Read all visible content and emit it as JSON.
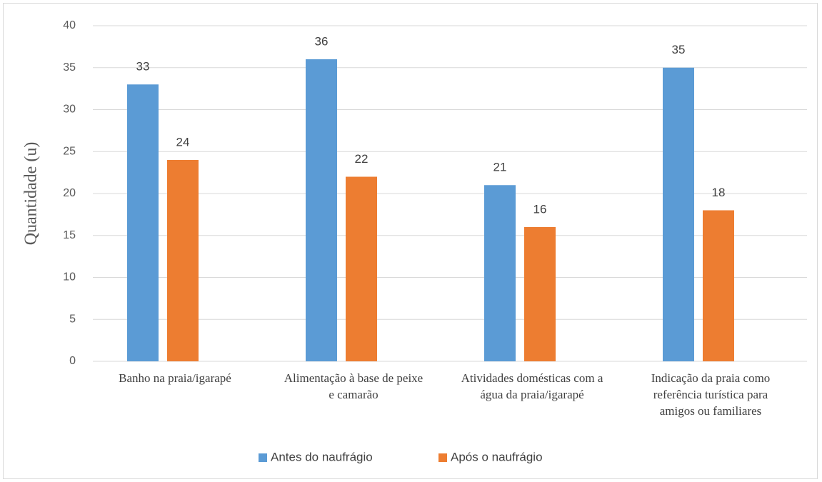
{
  "chart_data": {
    "type": "bar",
    "y_label": "Quantidade (u)",
    "categories": [
      "Banho na praia/igarapé",
      "Alimentação à base de peixe e camarão",
      "Atividades domésticas com a água da praia/igarapé",
      "Indicação da praia como referência turística para amigos ou familiares"
    ],
    "series": [
      {
        "name": "Antes do naufrágio",
        "color": "#5b9bd5",
        "values": [
          33,
          36,
          21,
          35
        ]
      },
      {
        "name": "Após o naufrágio",
        "color": "#ed7d31",
        "values": [
          24,
          22,
          16,
          18
        ]
      }
    ],
    "ylim": [
      0,
      40
    ],
    "yticks": [
      0,
      5,
      10,
      15,
      20,
      25,
      30,
      35,
      40
    ],
    "grid": true,
    "legend": "bottom"
  }
}
